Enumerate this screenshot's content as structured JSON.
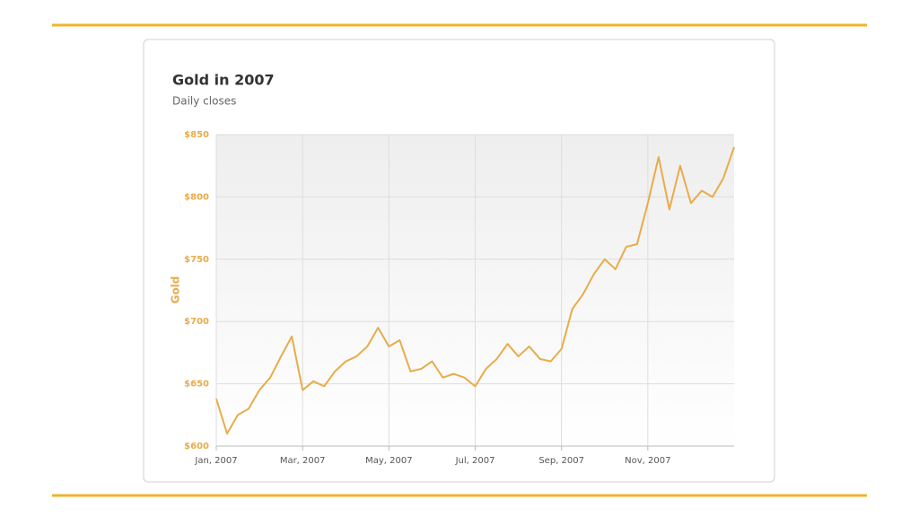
{
  "chart_data": {
    "type": "line",
    "title": "Gold in 2007",
    "subtitle": "Daily closes",
    "y_label": "Gold",
    "x": [
      0,
      0.25,
      0.5,
      0.75,
      1,
      1.25,
      1.5,
      1.75,
      2,
      2.25,
      2.5,
      2.75,
      3,
      3.25,
      3.5,
      3.75,
      4,
      4.25,
      4.5,
      4.75,
      5,
      5.25,
      5.5,
      5.75,
      6,
      6.25,
      6.5,
      6.75,
      7,
      7.25,
      7.5,
      7.75,
      8,
      8.25,
      8.5,
      8.75,
      9,
      9.25,
      9.5,
      9.75,
      10,
      10.25,
      10.5,
      10.75,
      11,
      11.25,
      11.5,
      11.75,
      12
    ],
    "series": [
      {
        "name": "Gold",
        "color": "#e8ac4a",
        "values": [
          638,
          610,
          625,
          630,
          645,
          655,
          672,
          688,
          645,
          652,
          648,
          660,
          668,
          672,
          680,
          695,
          680,
          685,
          660,
          662,
          668,
          655,
          658,
          655,
          648,
          662,
          670,
          682,
          672,
          680,
          670,
          668,
          678,
          710,
          722,
          738,
          750,
          742,
          760,
          762,
          795,
          832,
          790,
          825,
          795,
          805,
          800,
          815,
          840
        ]
      }
    ],
    "xlim": [
      0,
      12
    ],
    "xticks": [
      {
        "value": 0,
        "label": "Jan, 2007"
      },
      {
        "value": 2,
        "label": "Mar, 2007"
      },
      {
        "value": 4,
        "label": "May, 2007"
      },
      {
        "value": 6,
        "label": "Jul, 2007"
      },
      {
        "value": 8,
        "label": "Sep, 2007"
      },
      {
        "value": 10,
        "label": "Nov, 2007"
      }
    ],
    "ylim": [
      600,
      850
    ],
    "yticks": [
      {
        "value": 600,
        "label": "$600"
      },
      {
        "value": 650,
        "label": "$650"
      },
      {
        "value": 700,
        "label": "$700"
      },
      {
        "value": 750,
        "label": "$750"
      },
      {
        "value": 800,
        "label": "$800"
      },
      {
        "value": 850,
        "label": "$850"
      }
    ],
    "grid": true
  }
}
